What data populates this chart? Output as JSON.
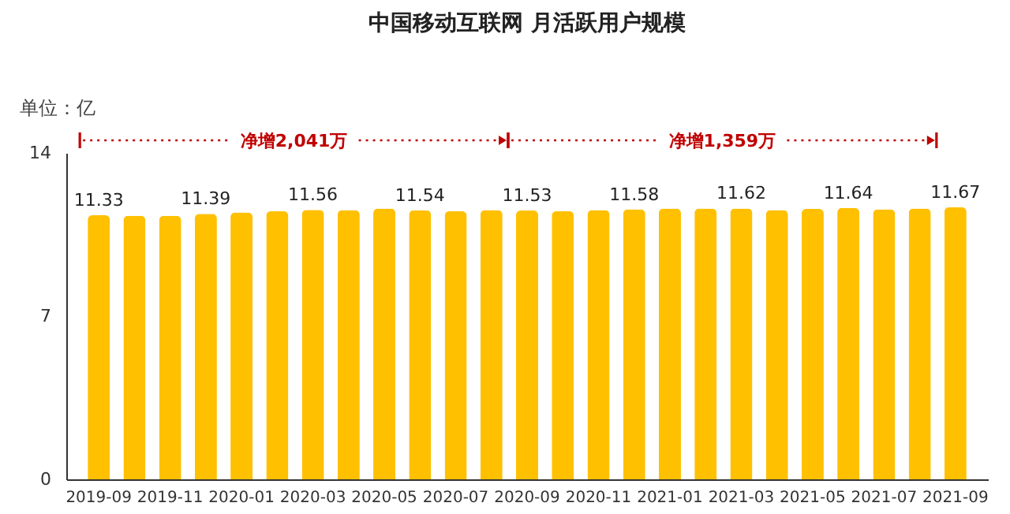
{
  "chart_data": {
    "type": "bar",
    "title": "中国移动互联网 月活跃用户规模",
    "ylabel": "单位：亿",
    "categories": [
      "2019-09",
      null,
      "2019-11",
      null,
      "2020-01",
      null,
      "2020-03",
      null,
      "2020-05",
      null,
      "2020-07",
      null,
      "2020-09",
      null,
      "2020-11",
      null,
      "2021-01",
      null,
      "2021-03",
      null,
      "2021-05",
      null,
      "2021-07",
      null,
      "2021-09"
    ],
    "values": [
      11.33,
      11.3,
      11.3,
      11.39,
      11.45,
      11.5,
      11.56,
      11.55,
      11.62,
      11.54,
      11.5,
      11.55,
      11.53,
      11.5,
      11.55,
      11.58,
      11.62,
      11.62,
      11.62,
      11.55,
      11.6,
      11.64,
      11.58,
      11.62,
      11.67
    ],
    "value_labels": [
      "11.33",
      null,
      null,
      "11.39",
      null,
      null,
      "11.56",
      null,
      null,
      "11.54",
      null,
      null,
      "11.53",
      null,
      null,
      "11.58",
      null,
      null,
      "11.62",
      null,
      null,
      "11.64",
      null,
      null,
      "11.67"
    ],
    "color": "#ffc000",
    "ylim": [
      0,
      14
    ],
    "yticks": [
      0,
      7,
      14
    ],
    "grid": false,
    "annotations": [
      "净增2,041万",
      "净增1,359万"
    ]
  }
}
